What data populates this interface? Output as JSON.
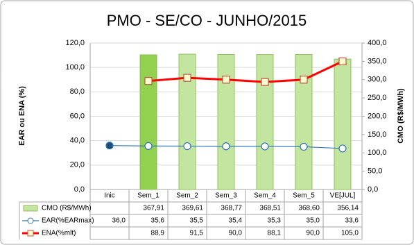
{
  "chart_data": {
    "type": "combo",
    "title": "PMO - SE/CO - JUNHO/2015",
    "ylabel": "EAR ou ENA (%)",
    "y2label": "CMO (R$/MWh)",
    "categories": [
      "Inic",
      "Sem_1",
      "Sem_2",
      "Sem_3",
      "Sem_4",
      "Sem_5",
      "VE[JUL]"
    ],
    "ylim": [
      0,
      120
    ],
    "yticks": [
      {
        "value": 0,
        "label": "0,0"
      },
      {
        "value": 20,
        "label": "20,0"
      },
      {
        "value": 40,
        "label": "40,0"
      },
      {
        "value": 60,
        "label": "60,0"
      },
      {
        "value": 80,
        "label": "80,0"
      },
      {
        "value": 100,
        "label": "100,0"
      },
      {
        "value": 120,
        "label": "120,0"
      }
    ],
    "y2lim": [
      0,
      400
    ],
    "y2ticks": [
      {
        "value": 0,
        "label": "0,0"
      },
      {
        "value": 50,
        "label": "50,0"
      },
      {
        "value": 100,
        "label": "100,0"
      },
      {
        "value": 150,
        "label": "150,0"
      },
      {
        "value": 200,
        "label": "200,0"
      },
      {
        "value": 250,
        "label": "250,0"
      },
      {
        "value": 300,
        "label": "300,0"
      },
      {
        "value": 350,
        "label": "350,0"
      },
      {
        "value": 400,
        "label": "400,0"
      }
    ],
    "grid": true,
    "series": [
      {
        "name": "CMO (R$/MWh)",
        "type": "bar",
        "axis": "y2",
        "color": "#c4e59f",
        "edge": "#8fbf5a",
        "colors": [
          "#c4e59f",
          "#92d050",
          "#c4e59f",
          "#c4e59f",
          "#c4e59f",
          "#c4e59f",
          "#c4e59f"
        ],
        "values": [
          null,
          367.91,
          369.61,
          368.77,
          368.51,
          368.6,
          356.14
        ],
        "value_labels": [
          null,
          "367,91",
          "369,61",
          "368,77",
          "368,51",
          "368,60",
          "356,14"
        ]
      },
      {
        "name": "EAR(%EARmax)",
        "type": "line",
        "marker": "circle",
        "color": "#2e75b6",
        "marker_fills": [
          "#1f4e79",
          "#ffffff",
          "#ffffff",
          "#ffffff",
          "#ffffff",
          "#ffffff",
          "#ffffff"
        ],
        "values": [
          36.0,
          35.6,
          35.5,
          35.4,
          35.3,
          35.0,
          33.6
        ],
        "value_labels": [
          "36,0",
          "35,6",
          "35,5",
          "35,4",
          "35,3",
          "35,0",
          "33,6"
        ]
      },
      {
        "name": "ENA(%mlt)",
        "type": "line",
        "marker": "square",
        "color": "#ff0000",
        "marker_fills": [
          "#ffffcc",
          "#ffffcc",
          "#ffffcc",
          "#ffffcc",
          "#ffffcc",
          "#ffffcc",
          "#ffffcc"
        ],
        "values": [
          null,
          88.9,
          91.5,
          90.0,
          88.1,
          90.0,
          105.0
        ],
        "value_labels": [
          null,
          "88,9",
          "91,5",
          "90,0",
          "88,1",
          "90,0",
          "105,0"
        ]
      }
    ]
  }
}
